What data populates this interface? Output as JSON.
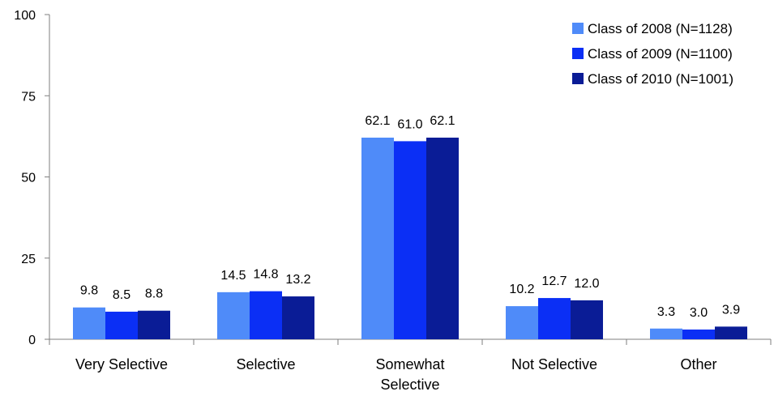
{
  "chart_data": {
    "type": "bar",
    "categories": [
      "Very Selective",
      "Selective",
      "Somewhat Selective",
      "Not Selective",
      "Other"
    ],
    "series": [
      {
        "name": "Class of 2008 (N=1128)",
        "values": [
          9.8,
          14.5,
          62.1,
          10.2,
          3.3
        ],
        "labels": [
          "9.8",
          "14.5",
          "62.1",
          "10.2",
          "3.3"
        ],
        "color": "#4F8BF9"
      },
      {
        "name": "Class of 2009 (N=1100)",
        "values": [
          8.5,
          14.8,
          61.0,
          12.7,
          3.0
        ],
        "labels": [
          "8.5",
          "14.8",
          "61.0",
          "12.7",
          "3.0"
        ],
        "color": "#0B2FF5"
      },
      {
        "name": "Class of 2010 (N=1001)",
        "values": [
          8.8,
          13.2,
          62.1,
          12.0,
          3.9
        ],
        "labels": [
          "8.8",
          "13.2",
          "62.1",
          "12.0",
          "3.9"
        ],
        "color": "#0A1C96"
      }
    ],
    "yticks": [
      0,
      25,
      50,
      75,
      100
    ],
    "ylim": [
      0,
      100
    ],
    "title": "",
    "xlabel": "",
    "ylabel": "",
    "grid": false,
    "legend_position": "top-right"
  }
}
